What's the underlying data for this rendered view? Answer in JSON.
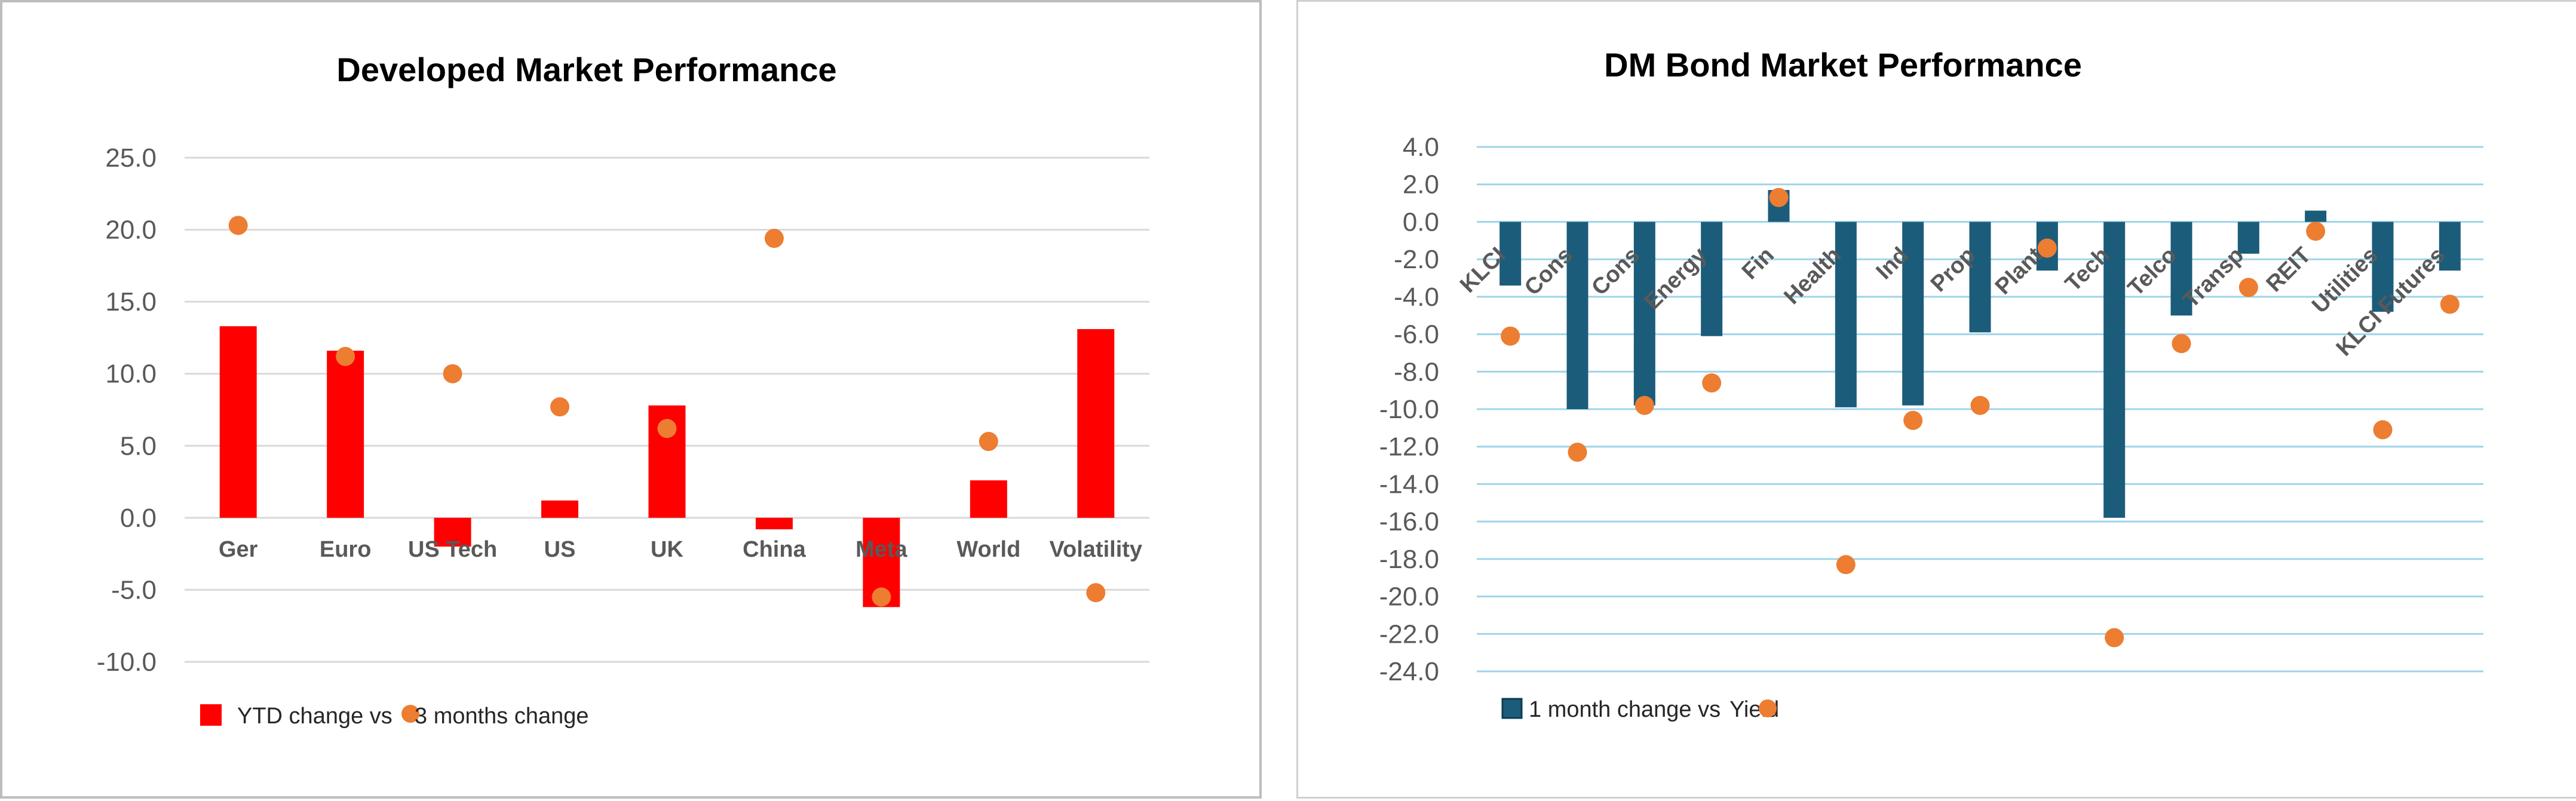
{
  "chart_data": [
    {
      "type": "bar",
      "title": "Developed Market Performance",
      "categories": [
        "Ger",
        "Euro",
        "US Tech",
        "US",
        "UK",
        "China",
        "Meta",
        "World",
        "Volatility"
      ],
      "series": [
        {
          "name": "YTD change vs",
          "kind": "bar",
          "color": "#ff0000",
          "values": [
            13.3,
            11.6,
            -2.0,
            1.2,
            7.8,
            -0.8,
            -6.2,
            2.6,
            13.1
          ]
        },
        {
          "name": "3 months change",
          "kind": "scatter",
          "color": "#ed7d31",
          "values": [
            20.3,
            11.2,
            10.0,
            7.7,
            6.2,
            19.4,
            -5.5,
            5.3,
            -5.2
          ]
        }
      ],
      "y_ticks": [
        "25.0",
        "20.0",
        "15.0",
        "10.0",
        "5.0",
        "0.0",
        "-5.0",
        "-10.0"
      ],
      "ylim": [
        -10,
        25
      ],
      "grid": true,
      "legend_position": "bottom-left"
    },
    {
      "type": "bar",
      "title": "DM Bond Market Performance",
      "categories": [
        "KLCI",
        "Cons",
        "Cons",
        "Energy",
        "Fin",
        "Health",
        "Ind",
        "Prop",
        "Plant",
        "Tech",
        "Telco",
        "Transp",
        "REIT",
        "Utilities",
        "KLCI Futures"
      ],
      "series": [
        {
          "name": "1 month change vs",
          "kind": "bar",
          "color": "#1b5c7a",
          "values": [
            -3.4,
            -10.0,
            -9.8,
            -6.1,
            1.7,
            -9.9,
            -9.8,
            -5.9,
            -2.6,
            -15.8,
            -5.0,
            -1.7,
            0.6,
            -4.8,
            -2.6
          ]
        },
        {
          "name": "Yield",
          "kind": "scatter",
          "color": "#ed7d31",
          "values": [
            -6.1,
            -12.3,
            -9.8,
            -8.6,
            1.3,
            -18.3,
            -10.6,
            -9.8,
            -1.4,
            -22.2,
            -6.5,
            -3.5,
            -0.5,
            -11.1,
            -4.4
          ]
        }
      ],
      "y_ticks": [
        "4.0",
        "2.0",
        "0.0",
        "-2.0",
        "-4.0",
        "-6.0",
        "-8.0",
        "-10.0",
        "-12.0",
        "-14.0",
        "-16.0",
        "-18.0",
        "-20.0",
        "-22.0",
        "-24.0"
      ],
      "ylim": [
        -24,
        4
      ],
      "grid": true,
      "legend_position": "bottom-left"
    }
  ]
}
